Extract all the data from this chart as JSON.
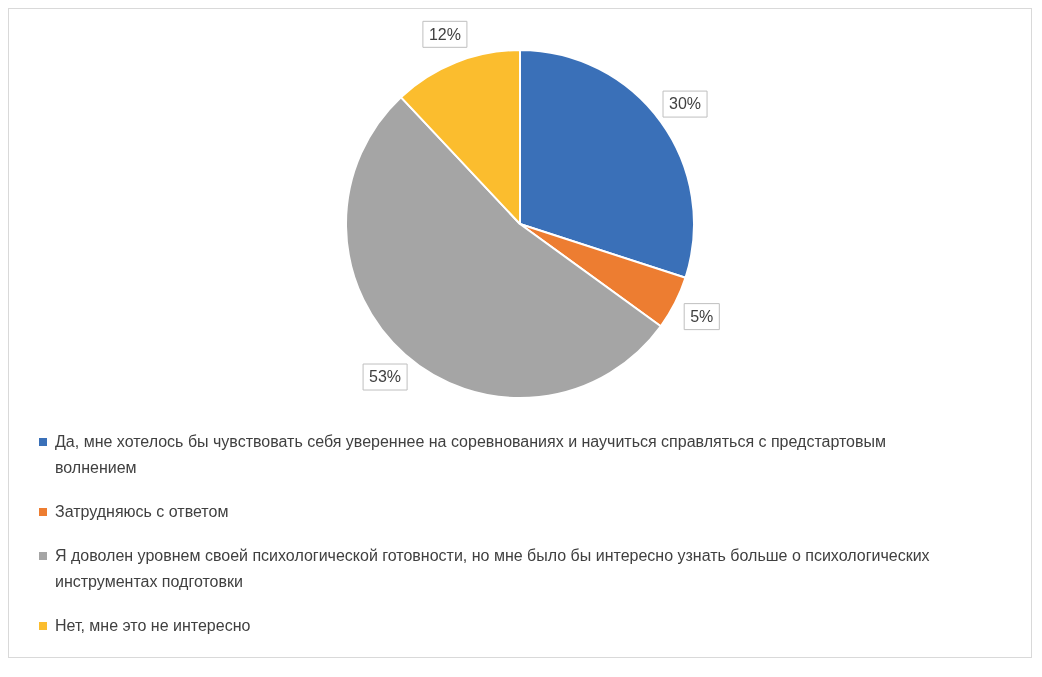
{
  "chart_data": {
    "type": "pie",
    "categories": [
      "Да, мне хотелось бы чувствовать себя увереннее на соревнованиях и научиться справляться с предстартовым волнением",
      "Затрудняюсь с ответом",
      "Я доволен уровнем своей психологической готовности, но мне было бы интересно узнать больше о психологических инструментах подготовки",
      "Нет, мне это не интересно"
    ],
    "values": [
      30,
      5,
      53,
      12
    ],
    "value_labels": [
      "30%",
      "5%",
      "53%",
      "12%"
    ],
    "colors": [
      "#3a70b8",
      "#ed7d31",
      "#a5a5a5",
      "#fbbd2e"
    ],
    "legend": "bottom"
  }
}
